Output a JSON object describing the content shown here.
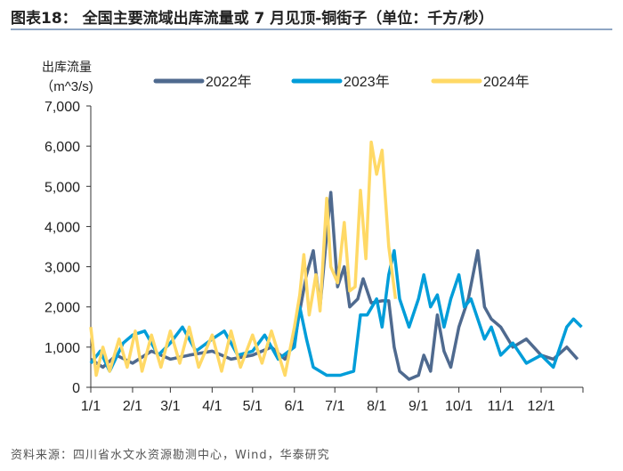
{
  "title": "图表18： 全国主要流域出库流量或 7 月见顶-铜街子（单位：千方/秒）",
  "source": "资料来源：四川省水文水资源勘测中心，Wind，华泰研究",
  "chart_data": {
    "type": "line",
    "ylabel_line1": "出库流量",
    "ylabel_line2": "（m^3/s)",
    "ylim": [
      0,
      7000
    ],
    "yticks": [
      0,
      1000,
      2000,
      3000,
      4000,
      5000,
      6000,
      7000
    ],
    "ytick_labels": [
      "0",
      "1,000",
      "2,000",
      "3,000",
      "4,000",
      "5,000",
      "6,000",
      "7,000"
    ],
    "xtick_labels": [
      "1/1",
      "2/1",
      "3/1",
      "4/1",
      "5/1",
      "6/1",
      "7/1",
      "8/1",
      "9/1",
      "10/1",
      "11/1",
      "12/1"
    ],
    "legend": "top",
    "grid": false,
    "series": [
      {
        "name": "2022年",
        "color": "#4F6A8F",
        "points": [
          [
            "1/1",
            700
          ],
          [
            "1/10",
            500
          ],
          [
            "1/20",
            800
          ],
          [
            "2/1",
            600
          ],
          [
            "2/15",
            900
          ],
          [
            "3/1",
            700
          ],
          [
            "3/15",
            800
          ],
          [
            "4/1",
            900
          ],
          [
            "4/15",
            700
          ],
          [
            "5/1",
            800
          ],
          [
            "5/15",
            1000
          ],
          [
            "5/25",
            700
          ],
          [
            "6/1",
            1100
          ],
          [
            "6/5",
            1900
          ],
          [
            "6/10",
            2800
          ],
          [
            "6/15",
            3400
          ],
          [
            "6/20",
            2000
          ],
          [
            "6/25",
            3800
          ],
          [
            "6/28",
            4850
          ],
          [
            "7/3",
            2500
          ],
          [
            "7/8",
            3000
          ],
          [
            "7/12",
            2000
          ],
          [
            "7/18",
            2200
          ],
          [
            "7/22",
            2700
          ],
          [
            "7/28",
            2100
          ],
          [
            "8/5",
            2150
          ],
          [
            "8/10",
            2150
          ],
          [
            "8/14",
            1000
          ],
          [
            "8/18",
            400
          ],
          [
            "8/25",
            200
          ],
          [
            "9/1",
            300
          ],
          [
            "9/5",
            800
          ],
          [
            "9/10",
            400
          ],
          [
            "9/15",
            1800
          ],
          [
            "9/20",
            900
          ],
          [
            "9/25",
            500
          ],
          [
            "10/1",
            1500
          ],
          [
            "10/8",
            2200
          ],
          [
            "10/15",
            3400
          ],
          [
            "10/20",
            2000
          ],
          [
            "10/25",
            1700
          ],
          [
            "11/1",
            1500
          ],
          [
            "11/10",
            1000
          ],
          [
            "11/20",
            1200
          ],
          [
            "12/1",
            800
          ],
          [
            "12/10",
            700
          ],
          [
            "12/20",
            1000
          ],
          [
            "12/28",
            700
          ]
        ]
      },
      {
        "name": "2023年",
        "color": "#009DD9",
        "points": [
          [
            "1/1",
            600
          ],
          [
            "1/8",
            900
          ],
          [
            "1/15",
            400
          ],
          [
            "1/25",
            1100
          ],
          [
            "2/1",
            1300
          ],
          [
            "2/10",
            1400
          ],
          [
            "2/20",
            800
          ],
          [
            "3/1",
            1100
          ],
          [
            "3/10",
            1500
          ],
          [
            "3/20",
            900
          ],
          [
            "4/1",
            1200
          ],
          [
            "4/10",
            1400
          ],
          [
            "4/20",
            800
          ],
          [
            "5/1",
            900
          ],
          [
            "5/10",
            1300
          ],
          [
            "5/20",
            700
          ],
          [
            "6/1",
            1000
          ],
          [
            "6/5",
            2000
          ],
          [
            "6/10",
            1200
          ],
          [
            "6/15",
            500
          ],
          [
            "6/25",
            300
          ],
          [
            "7/5",
            300
          ],
          [
            "7/15",
            400
          ],
          [
            "7/20",
            1800
          ],
          [
            "7/25",
            1800
          ],
          [
            "8/1",
            2200
          ],
          [
            "8/5",
            1500
          ],
          [
            "8/10",
            2800
          ],
          [
            "8/14",
            3400
          ],
          [
            "8/18",
            2200
          ],
          [
            "8/25",
            1500
          ],
          [
            "9/1",
            2200
          ],
          [
            "9/5",
            2800
          ],
          [
            "9/10",
            2000
          ],
          [
            "9/15",
            2300
          ],
          [
            "9/20",
            1500
          ],
          [
            "9/25",
            2200
          ],
          [
            "10/1",
            2800
          ],
          [
            "10/5",
            2000
          ],
          [
            "10/10",
            2200
          ],
          [
            "10/20",
            1200
          ],
          [
            "10/25",
            1500
          ],
          [
            "11/1",
            800
          ],
          [
            "11/10",
            1100
          ],
          [
            "11/20",
            600
          ],
          [
            "12/1",
            800
          ],
          [
            "12/10",
            500
          ],
          [
            "12/20",
            1500
          ],
          [
            "12/25",
            1700
          ],
          [
            "12/31",
            1500
          ]
        ]
      },
      {
        "name": "2024年",
        "color": "#FFD966",
        "points": [
          [
            "1/1",
            1500
          ],
          [
            "1/5",
            300
          ],
          [
            "1/10",
            1000
          ],
          [
            "1/15",
            400
          ],
          [
            "1/22",
            1200
          ],
          [
            "1/28",
            500
          ],
          [
            "2/3",
            1400
          ],
          [
            "2/8",
            400
          ],
          [
            "2/15",
            1300
          ],
          [
            "2/22",
            500
          ],
          [
            "3/1",
            1400
          ],
          [
            "3/8",
            600
          ],
          [
            "3/15",
            1500
          ],
          [
            "3/22",
            500
          ],
          [
            "4/1",
            1300
          ],
          [
            "4/8",
            400
          ],
          [
            "4/15",
            1400
          ],
          [
            "4/22",
            500
          ],
          [
            "5/1",
            1300
          ],
          [
            "5/8",
            600
          ],
          [
            "5/15",
            1400
          ],
          [
            "5/25",
            300
          ],
          [
            "6/1",
            1500
          ],
          [
            "6/5",
            2300
          ],
          [
            "6/8",
            3300
          ],
          [
            "6/12",
            1800
          ],
          [
            "6/17",
            2800
          ],
          [
            "6/20",
            1900
          ],
          [
            "6/25",
            4700
          ],
          [
            "6/28",
            3000
          ],
          [
            "7/3",
            2600
          ],
          [
            "7/8",
            4100
          ],
          [
            "7/12",
            2400
          ],
          [
            "7/16",
            2500
          ],
          [
            "7/20",
            4900
          ],
          [
            "7/24",
            3200
          ],
          [
            "7/28",
            6100
          ],
          [
            "8/1",
            5300
          ],
          [
            "8/5",
            5900
          ],
          [
            "8/10",
            3500
          ],
          [
            "8/15",
            2200
          ]
        ]
      }
    ]
  }
}
